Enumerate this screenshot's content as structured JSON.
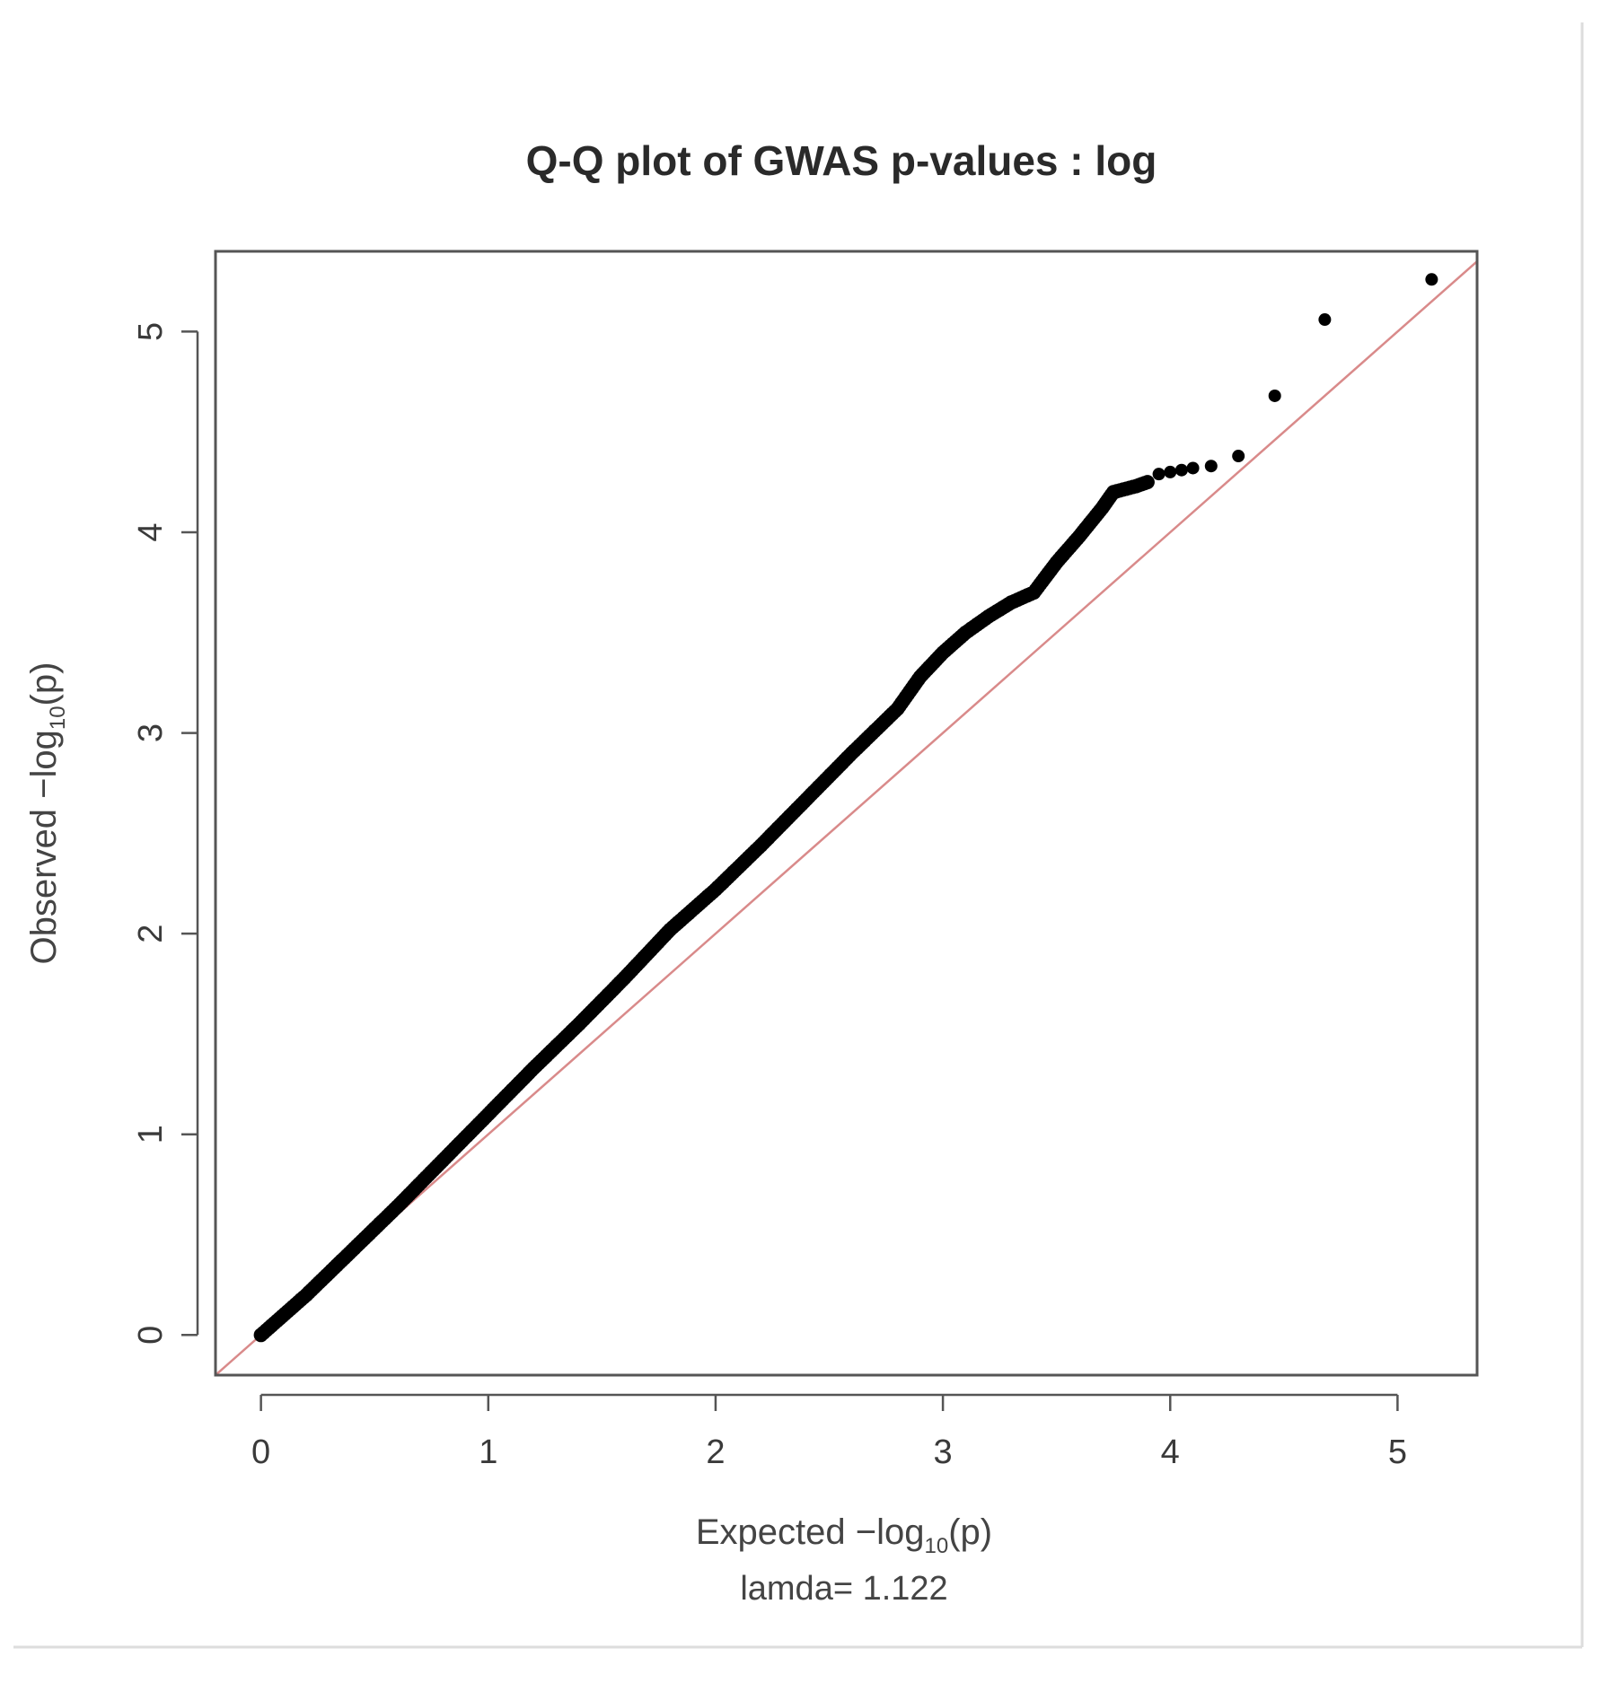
{
  "colors": {
    "points": "#000000",
    "reference_line": "#d98a8a",
    "frame": "#555555",
    "text": "#333333"
  },
  "chart_data": {
    "type": "scatter",
    "title": "Q-Q plot of GWAS p-values : log",
    "xlabel": {
      "prefix": "Expected  −log",
      "subscript": "10",
      "suffix": "(p)"
    },
    "ylabel": {
      "prefix": "Observed  −log",
      "subscript": "10",
      "suffix": "(p)"
    },
    "annotation": "lamda= 1.122",
    "xlim": [
      -0.2,
      5.35
    ],
    "ylim": [
      -0.2,
      5.4
    ],
    "x_ticks": [
      "0",
      "1",
      "2",
      "3",
      "4",
      "5"
    ],
    "y_ticks": [
      "0",
      "1",
      "2",
      "3",
      "4",
      "5"
    ],
    "grid": false,
    "legend": "none",
    "reference_line": {
      "slope": 1,
      "intercept": 0,
      "color": "#d98a8a"
    },
    "curve_points": [
      [
        0.0,
        0.0
      ],
      [
        0.2,
        0.2
      ],
      [
        0.4,
        0.42
      ],
      [
        0.6,
        0.64
      ],
      [
        0.8,
        0.87
      ],
      [
        1.0,
        1.1
      ],
      [
        1.2,
        1.33
      ],
      [
        1.4,
        1.55
      ],
      [
        1.6,
        1.78
      ],
      [
        1.8,
        2.02
      ],
      [
        2.0,
        2.22
      ],
      [
        2.2,
        2.44
      ],
      [
        2.4,
        2.67
      ],
      [
        2.6,
        2.9
      ],
      [
        2.8,
        3.12
      ],
      [
        2.9,
        3.28
      ],
      [
        3.0,
        3.4
      ],
      [
        3.1,
        3.5
      ],
      [
        3.2,
        3.58
      ],
      [
        3.3,
        3.65
      ],
      [
        3.4,
        3.7
      ],
      [
        3.5,
        3.85
      ],
      [
        3.6,
        3.98
      ],
      [
        3.7,
        4.12
      ],
      [
        3.75,
        4.2
      ],
      [
        3.85,
        4.23
      ],
      [
        3.9,
        4.25
      ]
    ],
    "outlier_points": [
      [
        3.95,
        4.29
      ],
      [
        4.0,
        4.3
      ],
      [
        4.05,
        4.31
      ],
      [
        4.1,
        4.32
      ],
      [
        4.18,
        4.33
      ],
      [
        4.3,
        4.38
      ],
      [
        4.46,
        4.68
      ],
      [
        4.68,
        5.06
      ],
      [
        5.15,
        5.26
      ]
    ]
  }
}
